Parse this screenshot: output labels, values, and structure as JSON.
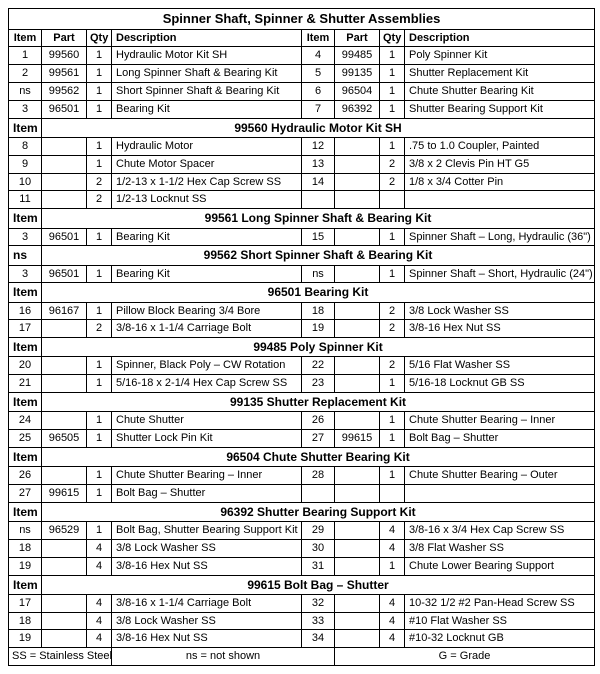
{
  "title": "Spinner Shaft, Spinner & Shutter Assemblies",
  "columns": [
    "Item",
    "Part",
    "Qty",
    "Description"
  ],
  "top_rows": [
    [
      {
        "item": "1",
        "part": "99560",
        "qty": "1",
        "desc": "Hydraulic Motor Kit SH"
      },
      {
        "item": "4",
        "part": "99485",
        "qty": "1",
        "desc": "Poly Spinner Kit"
      }
    ],
    [
      {
        "item": "2",
        "part": "99561",
        "qty": "1",
        "desc": "Long Spinner Shaft & Bearing Kit"
      },
      {
        "item": "5",
        "part": "99135",
        "qty": "1",
        "desc": "Shutter Replacement Kit"
      }
    ],
    [
      {
        "item": "ns",
        "part": "99562",
        "qty": "1",
        "desc": "Short Spinner Shaft & Bearing Kit"
      },
      {
        "item": "6",
        "part": "96504",
        "qty": "1",
        "desc": "Chute Shutter Bearing Kit"
      }
    ],
    [
      {
        "item": "3",
        "part": "96501",
        "qty": "1",
        "desc": "Bearing Kit"
      },
      {
        "item": "7",
        "part": "96392",
        "qty": "1",
        "desc": "Shutter Bearing Support Kit"
      }
    ]
  ],
  "sections": [
    {
      "id": "Item 1",
      "title": "99560  Hydraulic Motor Kit SH",
      "rows": [
        [
          {
            "item": "8",
            "part": "",
            "qty": "1",
            "desc": "Hydraulic Motor"
          },
          {
            "item": "12",
            "part": "",
            "qty": "1",
            "desc": ".75 to 1.0 Coupler, Painted"
          }
        ],
        [
          {
            "item": "9",
            "part": "",
            "qty": "1",
            "desc": "Chute Motor Spacer"
          },
          {
            "item": "13",
            "part": "",
            "qty": "2",
            "desc": "3/8 x 2 Clevis Pin  HT G5"
          }
        ],
        [
          {
            "item": "10",
            "part": "",
            "qty": "2",
            "desc": "1/2-13 x 1-1/2 Hex Cap Screw SS"
          },
          {
            "item": "14",
            "part": "",
            "qty": "2",
            "desc": "1/8 x 3/4 Cotter Pin"
          }
        ],
        [
          {
            "item": "11",
            "part": "",
            "qty": "2",
            "desc": "1/2-13 Locknut SS"
          },
          {
            "item": "",
            "part": "",
            "qty": "",
            "desc": ""
          }
        ]
      ]
    },
    {
      "id": "Item 2",
      "title": "99561  Long Spinner Shaft & Bearing Kit",
      "rows": [
        [
          {
            "item": "3",
            "part": "96501",
            "qty": "1",
            "desc": "Bearing Kit"
          },
          {
            "item": "15",
            "part": "",
            "qty": "1",
            "desc": "Spinner Shaft – Long, Hydraulic (36\")"
          }
        ]
      ]
    },
    {
      "id": " ns",
      "title": "99562  Short Spinner Shaft & Bearing Kit",
      "rows": [
        [
          {
            "item": "3",
            "part": "96501",
            "qty": "1",
            "desc": "Bearing Kit"
          },
          {
            "item": "ns",
            "part": "",
            "qty": "1",
            "desc": "Spinner Shaft – Short, Hydraulic (24\")"
          }
        ]
      ]
    },
    {
      "id": "Item 3",
      "title": "96501  Bearing Kit",
      "rows": [
        [
          {
            "item": "16",
            "part": "96167",
            "qty": "1",
            "desc": "Pillow Block Bearing 3/4 Bore"
          },
          {
            "item": "18",
            "part": "",
            "qty": "2",
            "desc": "3/8 Lock Washer SS"
          }
        ],
        [
          {
            "item": "17",
            "part": "",
            "qty": "2",
            "desc": "3/8-16 x 1-1/4 Carriage Bolt"
          },
          {
            "item": "19",
            "part": "",
            "qty": "2",
            "desc": "3/8-16 Hex Nut SS"
          }
        ]
      ]
    },
    {
      "id": "Item 4",
      "title": "99485  Poly Spinner Kit",
      "rows": [
        [
          {
            "item": "20",
            "part": "",
            "qty": "1",
            "desc": "Spinner, Black Poly – CW Rotation"
          },
          {
            "item": "22",
            "part": "",
            "qty": "2",
            "desc": "5/16 Flat Washer SS"
          }
        ],
        [
          {
            "item": "21",
            "part": "",
            "qty": "1",
            "desc": "5/16-18 x 2-1/4 Hex Cap Screw SS"
          },
          {
            "item": "23",
            "part": "",
            "qty": "1",
            "desc": "5/16-18 Locknut GB SS"
          }
        ]
      ]
    },
    {
      "id": "Item 5",
      "title": "99135  Shutter Replacement Kit",
      "rows": [
        [
          {
            "item": "24",
            "part": "",
            "qty": "1",
            "desc": "Chute Shutter"
          },
          {
            "item": "26",
            "part": "",
            "qty": "1",
            "desc": "Chute Shutter Bearing – Inner"
          }
        ],
        [
          {
            "item": "25",
            "part": "96505",
            "qty": "1",
            "desc": "Shutter Lock Pin Kit"
          },
          {
            "item": "27",
            "part": "99615",
            "qty": "1",
            "desc": "Bolt Bag – Shutter"
          }
        ]
      ]
    },
    {
      "id": "Item 6",
      "title": "96504  Chute Shutter Bearing Kit",
      "rows": [
        [
          {
            "item": "26",
            "part": "",
            "qty": "1",
            "desc": "Chute Shutter Bearing – Inner"
          },
          {
            "item": "28",
            "part": "",
            "qty": "1",
            "desc": "Chute Shutter Bearing – Outer"
          }
        ],
        [
          {
            "item": "27",
            "part": "99615",
            "qty": "1",
            "desc": "Bolt Bag – Shutter"
          },
          {
            "item": "",
            "part": "",
            "qty": "",
            "desc": ""
          }
        ]
      ]
    },
    {
      "id": "Item 7",
      "title": "96392  Shutter Bearing Support Kit",
      "rows": [
        [
          {
            "item": "ns",
            "part": "96529",
            "qty": "1",
            "desc": "Bolt Bag, Shutter Bearing Support Kit"
          },
          {
            "item": "29",
            "part": "",
            "qty": "4",
            "desc": "3/8-16 x 3/4 Hex Cap Screw SS"
          }
        ],
        [
          {
            "item": "18",
            "part": "",
            "qty": "4",
            "desc": "3/8 Lock Washer SS"
          },
          {
            "item": "30",
            "part": "",
            "qty": "4",
            "desc": "3/8 Flat Washer SS"
          }
        ],
        [
          {
            "item": "19",
            "part": "",
            "qty": "4",
            "desc": "3/8-16 Hex Nut SS"
          },
          {
            "item": "31",
            "part": "",
            "qty": "1",
            "desc": "Chute Lower Bearing Support"
          }
        ]
      ]
    },
    {
      "id": "Item 27",
      "title": "99615  Bolt Bag – Shutter",
      "rows": [
        [
          {
            "item": "17",
            "part": "",
            "qty": "4",
            "desc": "3/8-16 x 1-1/4 Carriage Bolt"
          },
          {
            "item": "32",
            "part": "",
            "qty": "4",
            "desc": "10-32 1/2 #2 Pan-Head Screw SS"
          }
        ],
        [
          {
            "item": "18",
            "part": "",
            "qty": "4",
            "desc": "3/8 Lock Washer SS"
          },
          {
            "item": "33",
            "part": "",
            "qty": "4",
            "desc": "#10 Flat Washer SS"
          }
        ],
        [
          {
            "item": "19",
            "part": "",
            "qty": "4",
            "desc": "3/8-16 Hex Nut SS"
          },
          {
            "item": "34",
            "part": "",
            "qty": "4",
            "desc": "#10-32 Locknut GB"
          }
        ]
      ]
    }
  ],
  "footer": [
    "SS = Stainless Steel",
    "ns = not shown",
    "G = Grade"
  ]
}
